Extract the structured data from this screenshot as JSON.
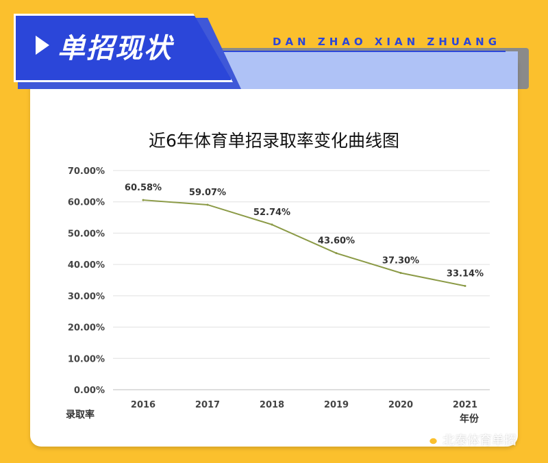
{
  "header": {
    "title": "单招现状",
    "subtitle": "DAN ZHAO XIAN ZHUANG"
  },
  "watermark": {
    "icon": "wechat-icon",
    "text": "北泰体育单招"
  },
  "colors": {
    "background": "#FBC02D",
    "banner": "#2B46D9",
    "banner_light": "#AFC2F6",
    "line": "#8B9A46"
  },
  "chart_data": {
    "type": "line",
    "title": "近6年体育单招录取率变化曲线图",
    "xlabel": "年份",
    "ylabel": "录取率",
    "categories": [
      "2016",
      "2017",
      "2018",
      "2019",
      "2020",
      "2021"
    ],
    "series": [
      {
        "values": [
          60.58,
          59.07,
          52.74,
          43.6,
          37.3,
          33.14
        ],
        "labels": [
          "60.58%",
          "59.07%",
          "52.74%",
          "43.60%",
          "37.30%",
          "33.14%"
        ]
      }
    ],
    "yticks": [
      "0.00%",
      "10.00%",
      "20.00%",
      "30.00%",
      "40.00%",
      "50.00%",
      "60.00%",
      "70.00%"
    ],
    "ylim": [
      0,
      70
    ],
    "grid": true,
    "legend": "none"
  }
}
